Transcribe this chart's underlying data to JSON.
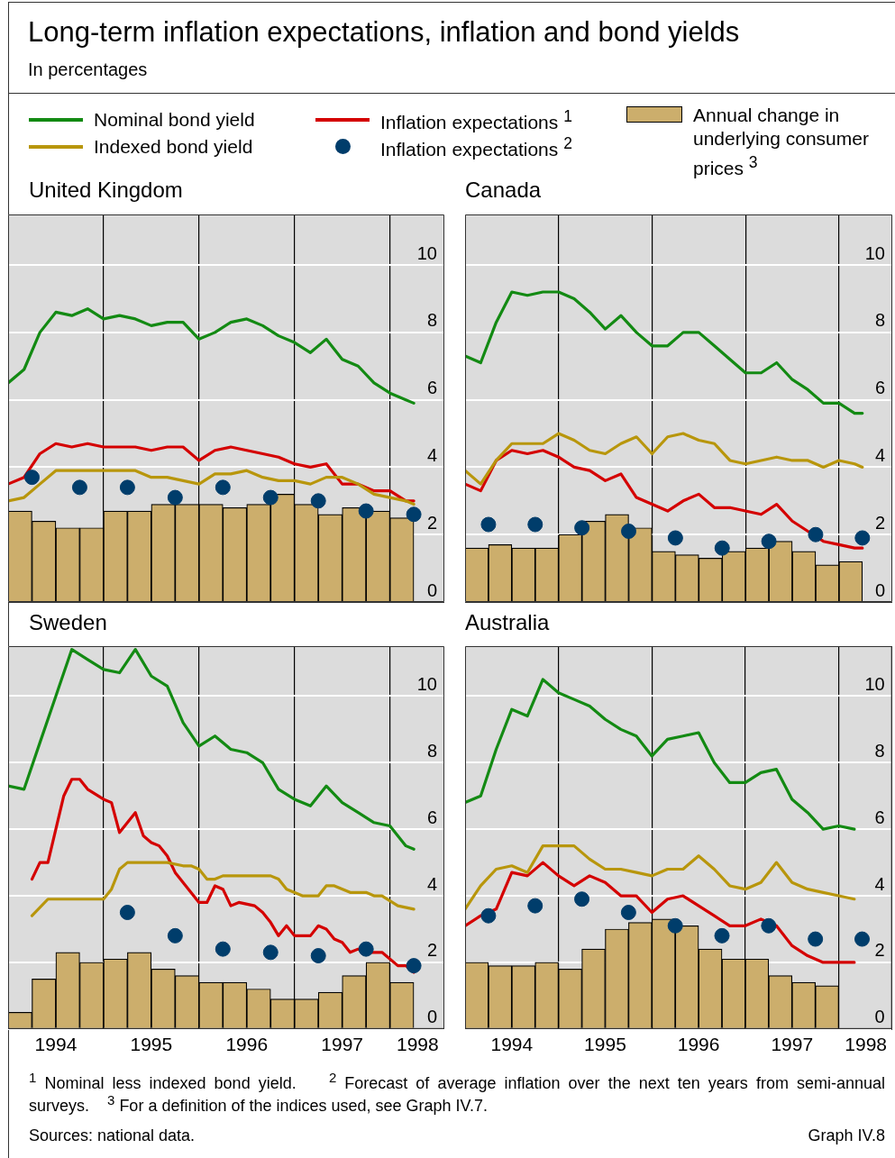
{
  "chart_data": [
    {
      "type": "other",
      "title": "Long-term inflation expectations, inflation and bond yields",
      "subtitle": "In percentages"
    },
    {
      "type": "line",
      "title": "United Kingdom",
      "xlim": [
        1994,
        1998.57
      ],
      "xticks": [
        {
          "value": 1995,
          "label": null
        },
        {
          "value": 1996,
          "label": null
        },
        {
          "value": 1997,
          "label": null
        },
        {
          "value": 1998,
          "label": null
        }
      ],
      "ylim": [
        0,
        11.5
      ],
      "yticks": [
        0,
        2,
        4,
        6,
        8,
        10
      ],
      "grid": true,
      "tick_labels": "y",
      "legend": "top",
      "series": [
        {
          "type": "line",
          "name": "Nominal bond yield",
          "color": "#138a13",
          "x": [
            1994,
            1994.167,
            1994.333,
            1994.5,
            1994.667,
            1994.833,
            1995,
            1995.167,
            1995.333,
            1995.5,
            1995.667,
            1995.833,
            1996,
            1996.167,
            1996.333,
            1996.5,
            1996.667,
            1996.833,
            1997,
            1997.167,
            1997.333,
            1997.5,
            1997.667,
            1997.833,
            1998,
            1998.167,
            1998.25
          ],
          "values": [
            6.5,
            6.9,
            8.0,
            8.6,
            8.5,
            8.7,
            8.4,
            8.5,
            8.4,
            8.2,
            8.3,
            8.3,
            7.8,
            8.0,
            8.3,
            8.4,
            8.2,
            7.9,
            7.7,
            7.4,
            7.8,
            7.2,
            7.0,
            6.5,
            6.2,
            6.0,
            5.9
          ]
        },
        {
          "type": "line",
          "name": "Indexed bond yield",
          "color": "#b8960c",
          "x": [
            1994,
            1994.167,
            1994.333,
            1994.5,
            1994.667,
            1994.833,
            1995,
            1995.167,
            1995.333,
            1995.5,
            1995.667,
            1995.833,
            1996,
            1996.167,
            1996.333,
            1996.5,
            1996.667,
            1996.833,
            1997,
            1997.167,
            1997.333,
            1997.5,
            1997.667,
            1997.833,
            1998,
            1998.167,
            1998.25
          ],
          "values": [
            3.0,
            3.1,
            3.5,
            3.9,
            3.9,
            3.9,
            3.9,
            3.9,
            3.9,
            3.7,
            3.7,
            3.6,
            3.5,
            3.8,
            3.8,
            3.9,
            3.7,
            3.6,
            3.6,
            3.5,
            3.7,
            3.7,
            3.5,
            3.2,
            3.1,
            3.0,
            2.9
          ]
        },
        {
          "type": "line",
          "name": "Inflation expectations $^{1}$",
          "color": "#d40000",
          "x": [
            1994,
            1994.167,
            1994.333,
            1994.5,
            1994.667,
            1994.833,
            1995,
            1995.167,
            1995.333,
            1995.5,
            1995.667,
            1995.833,
            1996,
            1996.167,
            1996.333,
            1996.5,
            1996.667,
            1996.833,
            1997,
            1997.167,
            1997.333,
            1997.5,
            1997.667,
            1997.833,
            1998,
            1998.167,
            1998.25
          ],
          "values": [
            3.5,
            3.7,
            4.4,
            4.7,
            4.6,
            4.7,
            4.6,
            4.6,
            4.6,
            4.5,
            4.6,
            4.6,
            4.2,
            4.5,
            4.6,
            4.5,
            4.4,
            4.3,
            4.1,
            4.0,
            4.1,
            3.5,
            3.5,
            3.3,
            3.3,
            3.0,
            3.0
          ]
        },
        {
          "type": "scatter",
          "name": "Inflation expectations $^{2}$",
          "color": "#003d6b",
          "marker": "circle",
          "x": [
            1994.25,
            1994.75,
            1995.25,
            1995.75,
            1996.25,
            1996.75,
            1997.25,
            1997.75,
            1998.25
          ],
          "values": [
            3.7,
            3.4,
            3.4,
            3.1,
            3.4,
            3.1,
            3.0,
            2.7,
            2.6
          ]
        },
        {
          "type": "bar",
          "name": "Annual change in underlying consumer prices $^{3}$",
          "color": "#ccae6c",
          "x": [
            1994.125,
            1994.375,
            1994.625,
            1994.875,
            1995.125,
            1995.375,
            1995.625,
            1995.875,
            1996.125,
            1996.375,
            1996.625,
            1996.875,
            1997.125,
            1997.375,
            1997.625,
            1997.875,
            1998.125
          ],
          "values": [
            2.7,
            2.4,
            2.2,
            2.2,
            2.7,
            2.7,
            2.9,
            2.9,
            2.9,
            2.8,
            2.9,
            3.2,
            2.9,
            2.6,
            2.8,
            2.7,
            2.5
          ]
        }
      ]
    },
    {
      "type": "line",
      "title": "Canada",
      "xlim": [
        1994,
        1998.57
      ],
      "xticks": [
        {
          "value": 1995,
          "label": null
        },
        {
          "value": 1996,
          "label": null
        },
        {
          "value": 1997,
          "label": null
        },
        {
          "value": 1998,
          "label": null
        }
      ],
      "ylim": [
        0,
        11.5
      ],
      "yticks": [
        0,
        2,
        4,
        6,
        8,
        10
      ],
      "grid": true,
      "tick_labels": "y",
      "series": [
        {
          "type": "line",
          "color": "#138a13",
          "x": [
            1994,
            1994.167,
            1994.333,
            1994.5,
            1994.667,
            1994.833,
            1995,
            1995.167,
            1995.333,
            1995.5,
            1995.667,
            1995.833,
            1996,
            1996.167,
            1996.333,
            1996.5,
            1996.667,
            1996.833,
            1997,
            1997.167,
            1997.333,
            1997.5,
            1997.667,
            1997.833,
            1998,
            1998.167,
            1998.25
          ],
          "values": [
            7.3,
            7.1,
            8.3,
            9.2,
            9.1,
            9.2,
            9.2,
            9.0,
            8.6,
            8.1,
            8.5,
            8.0,
            7.6,
            7.6,
            8.0,
            8.0,
            7.6,
            7.2,
            6.8,
            6.8,
            7.1,
            6.6,
            6.3,
            5.9,
            5.9,
            5.6,
            5.6
          ]
        },
        {
          "type": "line",
          "color": "#b8960c",
          "x": [
            1994,
            1994.167,
            1994.333,
            1994.5,
            1994.667,
            1994.833,
            1995,
            1995.167,
            1995.333,
            1995.5,
            1995.667,
            1995.833,
            1996,
            1996.167,
            1996.333,
            1996.5,
            1996.667,
            1996.833,
            1997,
            1997.167,
            1997.333,
            1997.5,
            1997.667,
            1997.833,
            1998,
            1998.167,
            1998.25
          ],
          "values": [
            3.9,
            3.5,
            4.2,
            4.7,
            4.7,
            4.7,
            5.0,
            4.8,
            4.5,
            4.4,
            4.7,
            4.9,
            4.4,
            4.9,
            5.0,
            4.8,
            4.7,
            4.2,
            4.1,
            4.2,
            4.3,
            4.2,
            4.2,
            4.0,
            4.2,
            4.1,
            4.0
          ]
        },
        {
          "type": "line",
          "color": "#d40000",
          "x": [
            1994,
            1994.167,
            1994.333,
            1994.5,
            1994.667,
            1994.833,
            1995,
            1995.167,
            1995.333,
            1995.5,
            1995.667,
            1995.833,
            1996,
            1996.167,
            1996.333,
            1996.5,
            1996.667,
            1996.833,
            1997,
            1997.167,
            1997.333,
            1997.5,
            1997.667,
            1997.833,
            1998,
            1998.167,
            1998.25
          ],
          "values": [
            3.5,
            3.3,
            4.2,
            4.5,
            4.4,
            4.5,
            4.3,
            4.0,
            3.9,
            3.6,
            3.8,
            3.1,
            2.9,
            2.7,
            3.0,
            3.2,
            2.8,
            2.8,
            2.7,
            2.6,
            2.9,
            2.4,
            2.1,
            1.8,
            1.7,
            1.6,
            1.6
          ]
        },
        {
          "type": "scatter",
          "color": "#003d6b",
          "marker": "circle",
          "x": [
            1994.25,
            1994.75,
            1995.25,
            1995.75,
            1996.25,
            1996.75,
            1997.25,
            1997.75,
            1998.25
          ],
          "values": [
            2.3,
            2.3,
            2.2,
            2.1,
            1.9,
            1.6,
            1.8,
            2.0,
            1.9
          ]
        },
        {
          "type": "bar",
          "color": "#ccae6c",
          "x": [
            1994.125,
            1994.375,
            1994.625,
            1994.875,
            1995.125,
            1995.375,
            1995.625,
            1995.875,
            1996.125,
            1996.375,
            1996.625,
            1996.875,
            1997.125,
            1997.375,
            1997.625,
            1997.875,
            1998.125
          ],
          "values": [
            1.6,
            1.7,
            1.6,
            1.6,
            2.0,
            2.4,
            2.6,
            2.2,
            1.5,
            1.4,
            1.3,
            1.5,
            1.6,
            1.8,
            1.5,
            1.1,
            1.2
          ]
        }
      ]
    },
    {
      "type": "line",
      "title": "Sweden",
      "xlim": [
        1994,
        1998.57
      ],
      "xticks": [
        {
          "value": 1994.5,
          "label": "1994"
        },
        {
          "value": 1995,
          "label": null
        },
        {
          "value": 1995.5,
          "label": "1995"
        },
        {
          "value": 1996,
          "label": null
        },
        {
          "value": 1996.5,
          "label": "1996"
        },
        {
          "value": 1997,
          "label": null
        },
        {
          "value": 1997.5,
          "label": "1997"
        },
        {
          "value": 1998,
          "label": null
        },
        {
          "value": 1998.29,
          "label": "1998"
        }
      ],
      "ylim": [
        0,
        11.5
      ],
      "yticks": [
        0,
        2,
        4,
        6,
        8,
        10
      ],
      "grid": true,
      "series": [
        {
          "type": "line",
          "color": "#138a13",
          "x": [
            1994,
            1994.167,
            1994.333,
            1994.5,
            1994.667,
            1994.833,
            1995,
            1995.167,
            1995.333,
            1995.5,
            1995.667,
            1995.833,
            1996,
            1996.167,
            1996.333,
            1996.5,
            1996.667,
            1996.833,
            1997,
            1997.167,
            1997.333,
            1997.5,
            1997.667,
            1997.833,
            1998,
            1998.167,
            1998.25
          ],
          "values": [
            7.3,
            7.2,
            8.6,
            10.0,
            11.4,
            11.1,
            10.8,
            10.7,
            11.4,
            10.6,
            10.3,
            9.2,
            8.5,
            8.8,
            8.4,
            8.3,
            8.0,
            7.2,
            6.9,
            6.7,
            7.3,
            6.8,
            6.5,
            6.2,
            6.1,
            5.5,
            5.4
          ]
        },
        {
          "type": "line",
          "color": "#b8960c",
          "x": [
            1994.25,
            1994.417,
            1995,
            1995.083,
            1995.167,
            1995.25,
            1995.417,
            1995.583,
            1995.667,
            1995.833,
            1995.917,
            1996,
            1996.083,
            1996.167,
            1996.25,
            1996.333,
            1996.75,
            1996.833,
            1996.917,
            1997.083,
            1997.167,
            1997.25,
            1997.333,
            1997.417,
            1997.583,
            1997.75,
            1997.833,
            1997.917,
            1998.083,
            1998.25
          ],
          "values": [
            3.4,
            3.9,
            3.9,
            4.2,
            4.8,
            5.0,
            5.0,
            5.0,
            5.0,
            4.9,
            4.9,
            4.8,
            4.5,
            4.5,
            4.6,
            4.6,
            4.6,
            4.5,
            4.2,
            4.0,
            4.0,
            4.0,
            4.3,
            4.3,
            4.1,
            4.1,
            4.0,
            4.0,
            3.7,
            3.6
          ]
        },
        {
          "type": "line",
          "color": "#d40000",
          "x": [
            1994.25,
            1994.333,
            1994.417,
            1994.5,
            1994.583,
            1994.667,
            1994.75,
            1994.833,
            1995,
            1995.083,
            1995.167,
            1995.333,
            1995.417,
            1995.5,
            1995.583,
            1995.667,
            1995.75,
            1996,
            1996.083,
            1996.167,
            1996.25,
            1996.333,
            1996.417,
            1996.583,
            1996.667,
            1996.75,
            1996.833,
            1996.917,
            1997,
            1997.167,
            1997.25,
            1997.333,
            1997.417,
            1997.5,
            1997.583,
            1997.667,
            1997.75,
            1997.917,
            1998.083,
            1998.167,
            1998.25
          ],
          "values": [
            4.5,
            5.0,
            5.0,
            6.0,
            7.0,
            7.5,
            7.5,
            7.2,
            6.9,
            6.8,
            5.9,
            6.5,
            5.8,
            5.6,
            5.5,
            5.2,
            4.7,
            3.8,
            3.8,
            4.3,
            4.2,
            3.7,
            3.8,
            3.7,
            3.5,
            3.2,
            2.8,
            3.1,
            2.8,
            2.8,
            3.1,
            3.0,
            2.7,
            2.6,
            2.3,
            2.4,
            2.3,
            2.3,
            1.9,
            1.9,
            1.7
          ]
        },
        {
          "type": "scatter",
          "color": "#003d6b",
          "marker": "circle",
          "x": [
            1995.25,
            1995.75,
            1996.25,
            1996.75,
            1997.25,
            1997.75,
            1998.25
          ],
          "values": [
            3.5,
            2.8,
            2.4,
            2.3,
            2.2,
            2.4,
            1.9
          ]
        },
        {
          "type": "bar",
          "color": "#ccae6c",
          "x": [
            1994.125,
            1994.375,
            1994.625,
            1994.875,
            1995.125,
            1995.375,
            1995.625,
            1995.875,
            1996.125,
            1996.375,
            1996.625,
            1996.875,
            1997.125,
            1997.375,
            1997.625,
            1997.875,
            1998.125
          ],
          "values": [
            0.5,
            1.5,
            2.3,
            2.0,
            2.1,
            2.3,
            1.8,
            1.6,
            1.4,
            1.4,
            1.2,
            0.9,
            0.9,
            1.1,
            1.6,
            2.0,
            1.4
          ]
        }
      ]
    },
    {
      "type": "line",
      "title": "Australia",
      "xlim": [
        1994,
        1998.57
      ],
      "xticks": [
        {
          "value": 1994.5,
          "label": "1994"
        },
        {
          "value": 1995,
          "label": null
        },
        {
          "value": 1995.5,
          "label": "1995"
        },
        {
          "value": 1996,
          "label": null
        },
        {
          "value": 1996.5,
          "label": "1996"
        },
        {
          "value": 1997,
          "label": null
        },
        {
          "value": 1997.5,
          "label": "1997"
        },
        {
          "value": 1998,
          "label": null
        },
        {
          "value": 1998.29,
          "label": "1998"
        }
      ],
      "ylim": [
        0,
        11.5
      ],
      "yticks": [
        0,
        2,
        4,
        6,
        8,
        10
      ],
      "grid": true,
      "series": [
        {
          "type": "line",
          "color": "#138a13",
          "x": [
            1994,
            1994.167,
            1994.333,
            1994.5,
            1994.667,
            1994.833,
            1995,
            1995.167,
            1995.333,
            1995.5,
            1995.667,
            1995.833,
            1996,
            1996.167,
            1996.333,
            1996.5,
            1996.667,
            1996.833,
            1997,
            1997.167,
            1997.333,
            1997.5,
            1997.667,
            1997.833,
            1998,
            1998.167
          ],
          "values": [
            6.8,
            7.0,
            8.4,
            9.6,
            9.4,
            10.5,
            10.1,
            9.9,
            9.7,
            9.3,
            9.0,
            8.8,
            8.2,
            8.7,
            8.8,
            8.9,
            8.0,
            7.4,
            7.4,
            7.7,
            7.8,
            6.9,
            6.5,
            6.0,
            6.1,
            6.0
          ]
        },
        {
          "type": "line",
          "color": "#b8960c",
          "x": [
            1994,
            1994.167,
            1994.333,
            1994.5,
            1994.667,
            1994.833,
            1995,
            1995.167,
            1995.333,
            1995.5,
            1995.667,
            1995.833,
            1996,
            1996.167,
            1996.333,
            1996.5,
            1996.667,
            1996.833,
            1997,
            1997.167,
            1997.333,
            1997.5,
            1997.667,
            1997.833,
            1998,
            1998.167
          ],
          "values": [
            3.6,
            4.3,
            4.8,
            4.9,
            4.7,
            5.5,
            5.5,
            5.5,
            5.1,
            4.8,
            4.8,
            4.7,
            4.6,
            4.8,
            4.8,
            5.2,
            4.8,
            4.3,
            4.2,
            4.4,
            5.0,
            4.4,
            4.2,
            4.1,
            4.0,
            3.9
          ]
        },
        {
          "type": "line",
          "color": "#d40000",
          "x": [
            1994,
            1994.167,
            1994.333,
            1994.5,
            1994.667,
            1994.833,
            1995,
            1995.167,
            1995.333,
            1995.5,
            1995.667,
            1995.833,
            1996,
            1996.167,
            1996.333,
            1996.5,
            1996.667,
            1996.833,
            1997,
            1997.167,
            1997.333,
            1997.5,
            1997.667,
            1997.833,
            1998,
            1998.167
          ],
          "values": [
            3.1,
            3.4,
            3.6,
            4.7,
            4.6,
            5.0,
            4.6,
            4.3,
            4.6,
            4.4,
            4.0,
            4.0,
            3.5,
            3.9,
            4.0,
            3.7,
            3.4,
            3.1,
            3.1,
            3.3,
            3.1,
            2.5,
            2.2,
            2.0,
            2.0,
            2.0
          ]
        },
        {
          "type": "scatter",
          "color": "#003d6b",
          "marker": "circle",
          "x": [
            1994.25,
            1994.75,
            1995.25,
            1995.75,
            1996.25,
            1996.75,
            1997.25,
            1997.75,
            1998.25
          ],
          "values": [
            3.4,
            3.7,
            3.9,
            3.5,
            3.1,
            2.8,
            3.1,
            2.7,
            2.7
          ]
        },
        {
          "type": "bar",
          "color": "#ccae6c",
          "x": [
            1994.125,
            1994.375,
            1994.625,
            1994.875,
            1995.125,
            1995.375,
            1995.625,
            1995.875,
            1996.125,
            1996.375,
            1996.625,
            1996.875,
            1997.125,
            1997.375,
            1997.625,
            1997.875
          ],
          "values": [
            2.0,
            1.9,
            1.9,
            2.0,
            1.8,
            2.4,
            3.0,
            3.2,
            3.3,
            3.1,
            2.4,
            2.1,
            2.1,
            1.6,
            1.4,
            1.3
          ]
        }
      ]
    },
    {
      "type": "other",
      "annotations": [
        "$^{1}$ Nominal less indexed bond yield.",
        "$^{2}$ Forecast of average inflation over the next ten years from semi-annual surveys.",
        "$^{3}$ For a definition of the indices used, see Graph IV.7.",
        "Sources: national data.",
        "Graph IV.8"
      ]
    }
  ]
}
